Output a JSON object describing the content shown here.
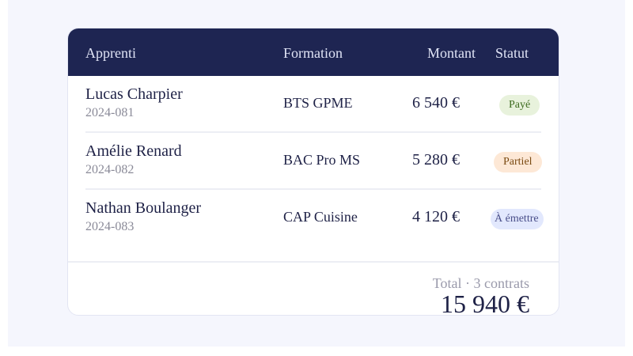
{
  "table": {
    "headers": {
      "apprenti": "Apprenti",
      "formation": "Formation",
      "montant": "Montant",
      "statut": "Statut"
    },
    "rows": [
      {
        "name": "Lucas Charpier",
        "id": "2024-081",
        "formation": "BTS GPME",
        "montant": "6 540 €",
        "statut": "Payé",
        "status_bg": "#e8f2dc",
        "status_color": "#3c6b1e"
      },
      {
        "name": "Amélie Renard",
        "id": "2024-082",
        "formation": "BAC Pro MS",
        "montant": "5 280 €",
        "statut": "Partiel",
        "status_bg": "#fde8d6",
        "status_color": "#7a4a12"
      },
      {
        "name": "Nathan Boulanger",
        "id": "2024-083",
        "formation": "CAP Cuisine",
        "montant": "4 120 €",
        "statut": "À émettre",
        "status_bg": "#e2e8fd",
        "status_color": "#4a4f8a"
      }
    ]
  },
  "footer": {
    "label": "Total · 3 contrats",
    "total": "15 940 €"
  },
  "colors": {
    "header_bg": "#1e2552",
    "page_bg": "#f5f6fd"
  }
}
